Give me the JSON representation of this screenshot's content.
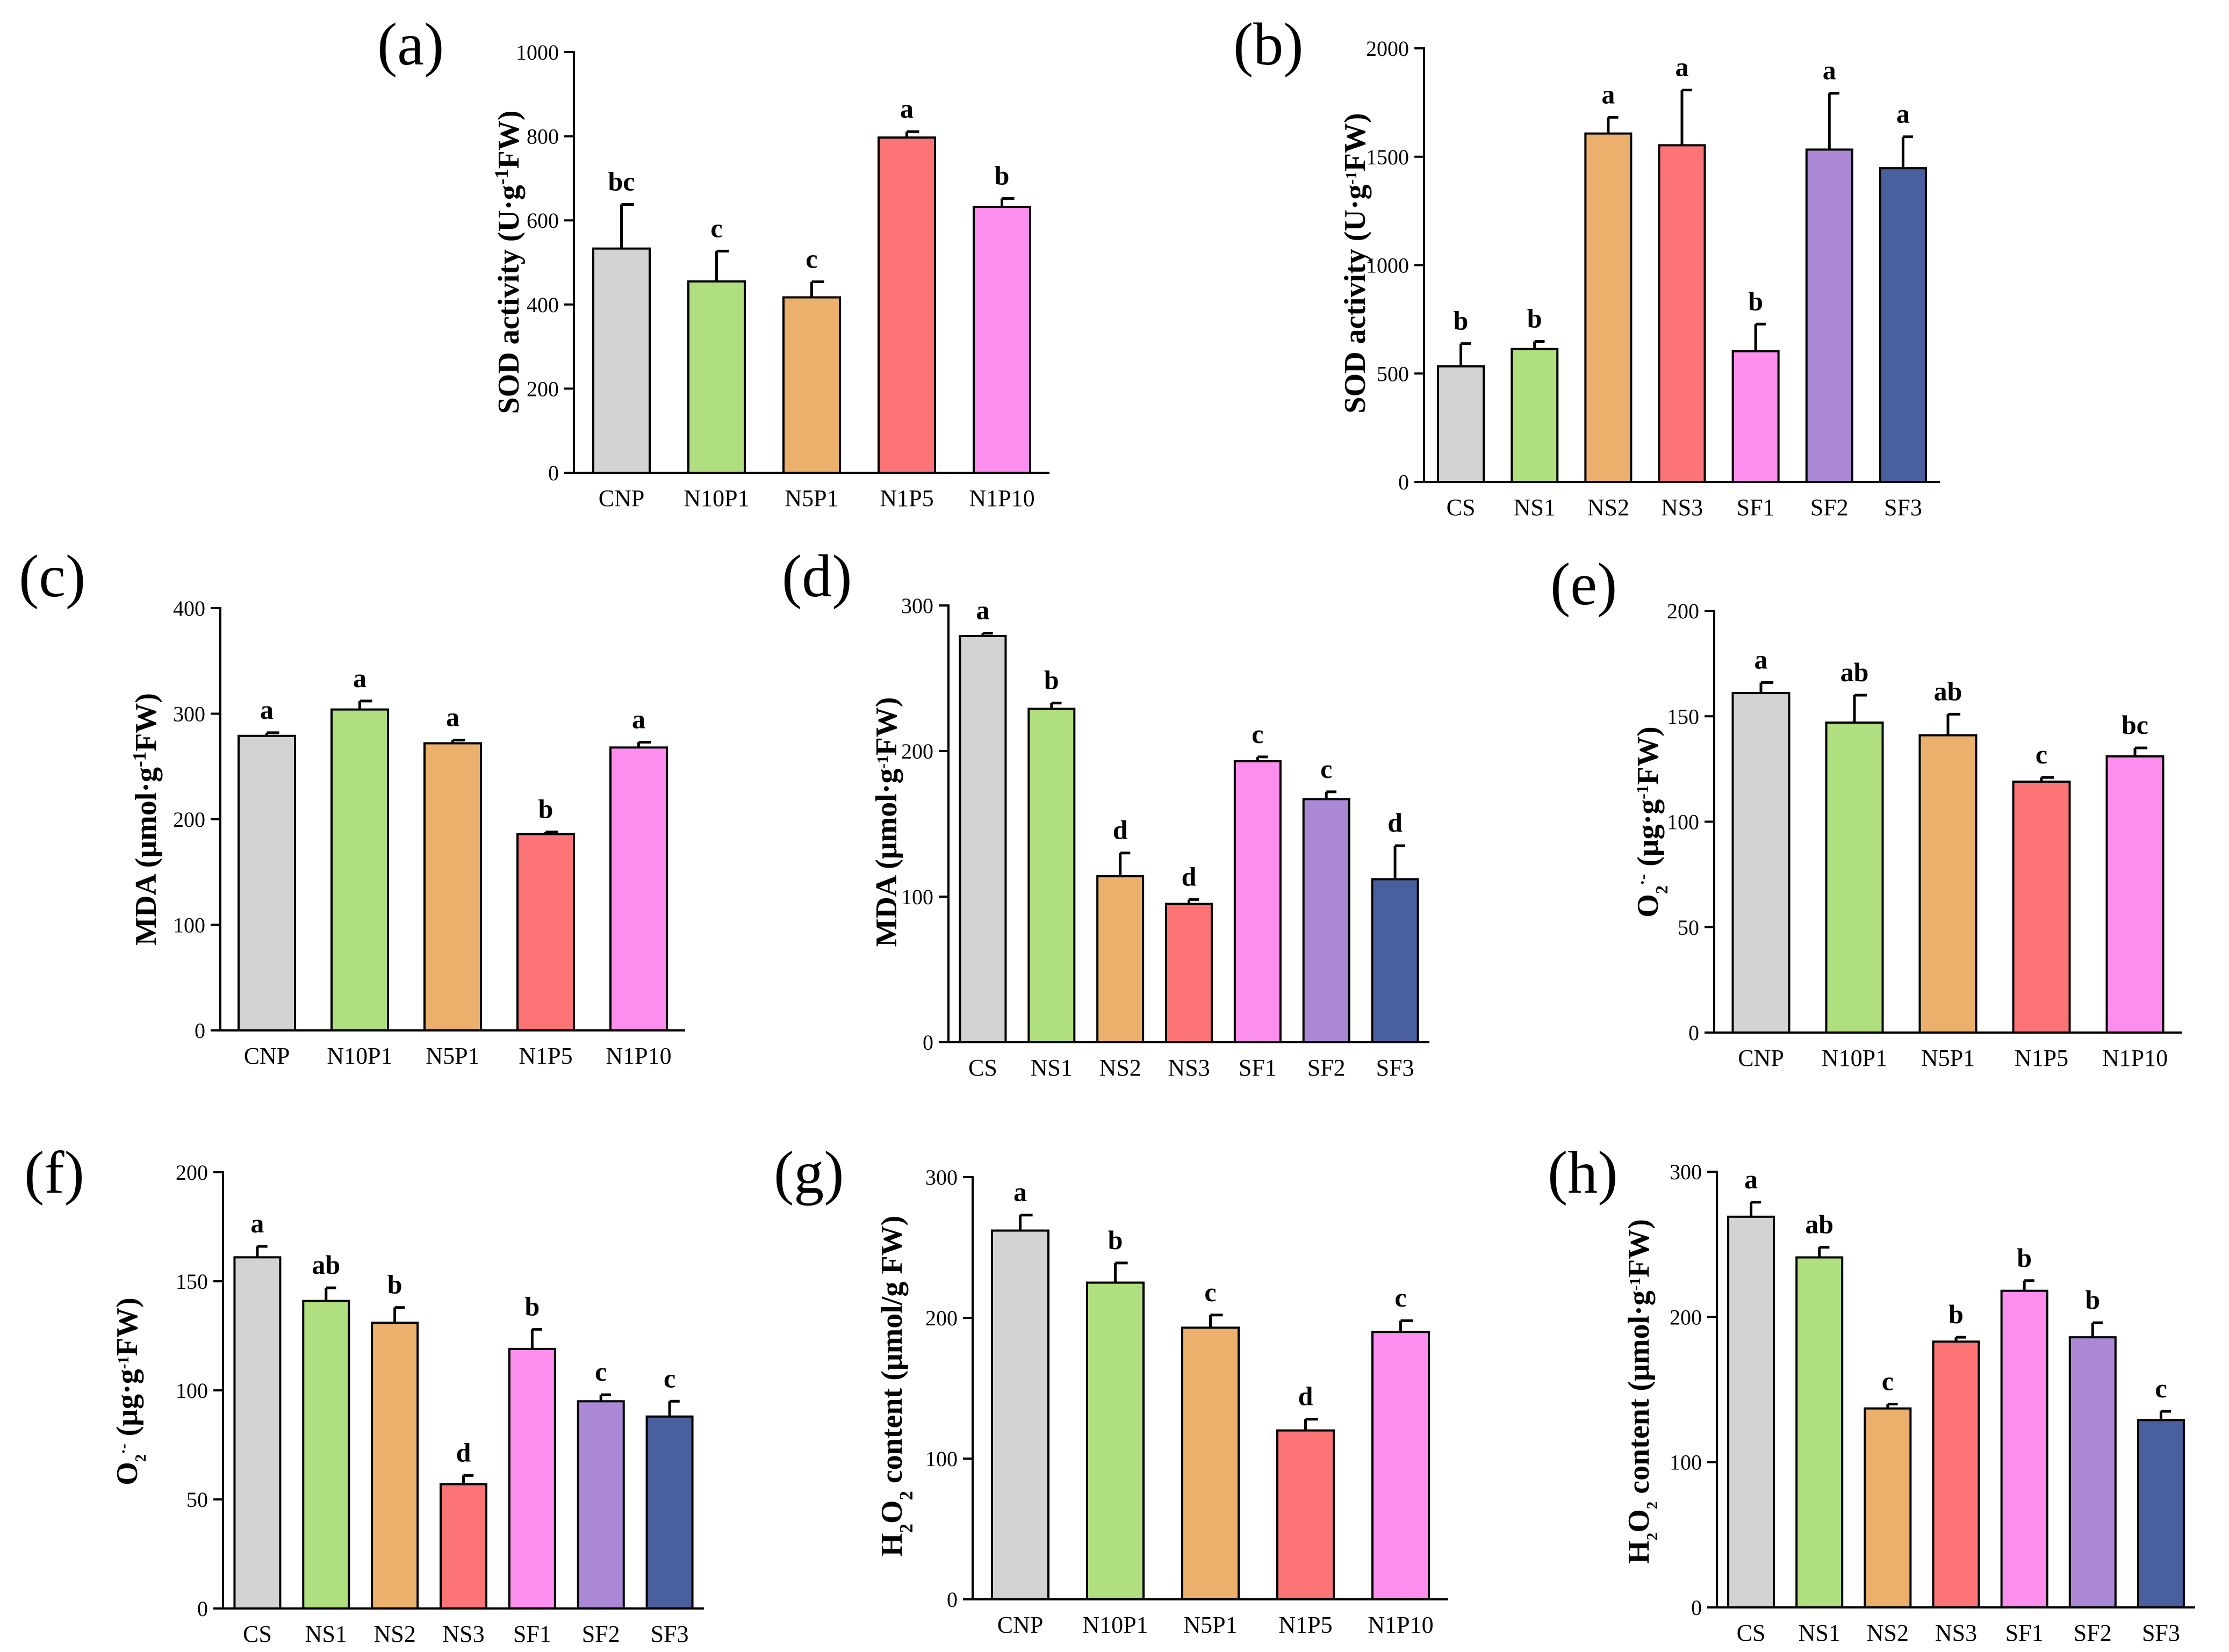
{
  "colors": {
    "CNP": "#d3d3d3",
    "CS": "#d3d3d3",
    "N10P1": "#b0df7f",
    "NS1": "#b0df7f",
    "N5P1": "#ebb06b",
    "NS2": "#ebb06b",
    "N1P5": "#fd7477",
    "NS3": "#fd7477",
    "N1P10": "#fc8eee",
    "SF1": "#fc8eee",
    "SF2": "#ab88d6",
    "SF3": "#4a5f9e"
  },
  "chart_data": [
    {
      "panel": "(a)",
      "type": "bar",
      "categories": [
        "CNP",
        "N10P1",
        "N5P1",
        "N1P5",
        "N1P10"
      ],
      "values": [
        533,
        455,
        417,
        797,
        632
      ],
      "errors": [
        105,
        72,
        37,
        14,
        20
      ],
      "letters": [
        "bc",
        "c",
        "c",
        "a",
        "b"
      ],
      "ylim": [
        0,
        1000
      ],
      "yticks": [
        0,
        200,
        400,
        600,
        800,
        1000
      ],
      "ylabel": "SOD activity (U·g-1FW)",
      "ylabel_parts": [
        [
          "SOD activity (U·g",
          ""
        ],
        [
          "-1",
          "sup"
        ],
        [
          "FW)",
          ""
        ]
      ]
    },
    {
      "panel": "(b)",
      "type": "bar",
      "categories": [
        "CS",
        "NS1",
        "NS2",
        "NS3",
        "SF1",
        "SF2",
        "SF3"
      ],
      "values": [
        533,
        613,
        1607,
        1553,
        603,
        1533,
        1447
      ],
      "errors": [
        105,
        35,
        75,
        255,
        125,
        260,
        145
      ],
      "letters": [
        "b",
        "b",
        "a",
        "a",
        "b",
        "a",
        "a"
      ],
      "ylim": [
        0,
        2000
      ],
      "yticks": [
        0,
        500,
        1000,
        1500,
        2000
      ],
      "ylabel": "SOD activity (U·g-1FW)",
      "ylabel_parts": [
        [
          "SOD activity (U·g",
          ""
        ],
        [
          "-1",
          "sup"
        ],
        [
          "FW)",
          ""
        ]
      ]
    },
    {
      "panel": "(c)",
      "type": "bar",
      "categories": [
        "CNP",
        "N10P1",
        "N5P1",
        "N1P5",
        "N1P10"
      ],
      "values": [
        279,
        304,
        272,
        186,
        268
      ],
      "errors": [
        3,
        8,
        3,
        2,
        5
      ],
      "letters": [
        "a",
        "a",
        "a",
        "b",
        "a"
      ],
      "ylim": [
        0,
        400
      ],
      "yticks": [
        0,
        100,
        200,
        300,
        400
      ],
      "ylabel": "MDA (μmol·g-1FW)",
      "ylabel_parts": [
        [
          "MDA (μmol·g",
          ""
        ],
        [
          "-1",
          "sup"
        ],
        [
          "FW)",
          ""
        ]
      ]
    },
    {
      "panel": "(d)",
      "type": "bar",
      "categories": [
        "CS",
        "NS1",
        "NS2",
        "NS3",
        "SF1",
        "SF2",
        "SF3"
      ],
      "values": [
        279,
        229,
        114,
        95,
        193,
        167,
        112
      ],
      "errors": [
        2,
        4,
        16,
        3,
        3,
        5,
        23
      ],
      "letters": [
        "a",
        "b",
        "d",
        "d",
        "c",
        "c",
        "d"
      ],
      "ylim": [
        0,
        300
      ],
      "yticks": [
        0,
        100,
        200,
        300
      ],
      "ylabel": "MDA (μmol·g-1FW)",
      "ylabel_parts": [
        [
          "MDA (μmol·g",
          ""
        ],
        [
          "-1",
          "sup"
        ],
        [
          "FW)",
          ""
        ]
      ]
    },
    {
      "panel": "(e)",
      "type": "bar",
      "categories": [
        "CNP",
        "N10P1",
        "N5P1",
        "N1P5",
        "N1P10"
      ],
      "values": [
        161,
        147,
        141,
        119,
        131
      ],
      "errors": [
        5,
        13,
        10,
        2,
        4
      ],
      "letters": [
        "a",
        "ab",
        "ab",
        "c",
        "bc"
      ],
      "ylim": [
        0,
        200
      ],
      "yticks": [
        0,
        50,
        100,
        150,
        200
      ],
      "ylabel": "O2·- (μg·g-1FW)",
      "ylabel_parts": [
        [
          "O",
          ""
        ],
        [
          "2",
          "sub"
        ],
        [
          "·-",
          "sup"
        ],
        [
          " (μg·g",
          ""
        ],
        [
          "-1",
          "sup"
        ],
        [
          "FW)",
          ""
        ]
      ]
    },
    {
      "panel": "(f)",
      "type": "bar",
      "categories": [
        "CS",
        "NS1",
        "NS2",
        "NS3",
        "SF1",
        "SF2",
        "SF3"
      ],
      "values": [
        161,
        141,
        131,
        57,
        119,
        95,
        88
      ],
      "errors": [
        5,
        6,
        7,
        4,
        9,
        3,
        7
      ],
      "letters": [
        "a",
        "ab",
        "b",
        "d",
        "b",
        "c",
        "c"
      ],
      "ylim": [
        0,
        200
      ],
      "yticks": [
        0,
        50,
        100,
        150,
        200
      ],
      "ylabel": "O2·- (μg·g-1FW)",
      "ylabel_parts": [
        [
          "O",
          ""
        ],
        [
          "2",
          "sub"
        ],
        [
          "·-",
          "sup"
        ],
        [
          " (μg·g",
          ""
        ],
        [
          "-1",
          "sup"
        ],
        [
          "FW)",
          ""
        ]
      ]
    },
    {
      "panel": "(g)",
      "type": "bar",
      "categories": [
        "CNP",
        "N10P1",
        "N5P1",
        "N1P5",
        "N1P10"
      ],
      "values": [
        262,
        225,
        193,
        120,
        190
      ],
      "errors": [
        11,
        14,
        9,
        8,
        8
      ],
      "letters": [
        "a",
        "b",
        "c",
        "d",
        "c"
      ],
      "ylim": [
        0,
        300
      ],
      "yticks": [
        0,
        100,
        200,
        300
      ],
      "ylabel": "H2O2 content (μmol/g FW)",
      "ylabel_parts": [
        [
          "H",
          ""
        ],
        [
          "2",
          "sub"
        ],
        [
          "O",
          ""
        ],
        [
          "2",
          "sub"
        ],
        [
          " content (μmol/g FW)",
          ""
        ]
      ]
    },
    {
      "panel": "(h)",
      "type": "bar",
      "categories": [
        "CS",
        "NS1",
        "NS2",
        "NS3",
        "SF1",
        "SF2",
        "SF3"
      ],
      "values": [
        269,
        241,
        137,
        183,
        218,
        186,
        129
      ],
      "errors": [
        10,
        7,
        3,
        3,
        7,
        10,
        6
      ],
      "letters": [
        "a",
        "ab",
        "c",
        "b",
        "b",
        "b",
        "c"
      ],
      "ylim": [
        0,
        300
      ],
      "yticks": [
        0,
        100,
        200,
        300
      ],
      "ylabel": "H2O2 content (μmol·g-1FW)",
      "ylabel_parts": [
        [
          "H",
          ""
        ],
        [
          "2",
          "sub"
        ],
        [
          "O",
          ""
        ],
        [
          "2",
          "sub"
        ],
        [
          " content (μmol·g",
          ""
        ],
        [
          "-1",
          "sup"
        ],
        [
          "FW)",
          ""
        ]
      ]
    }
  ]
}
